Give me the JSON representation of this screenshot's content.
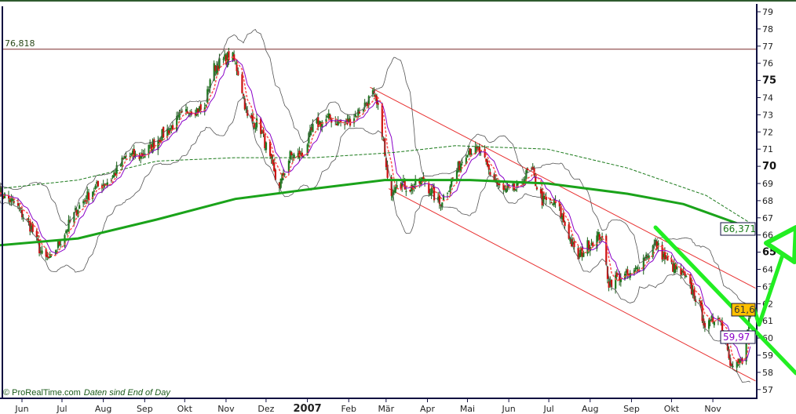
{
  "chart_data": {
    "type": "candlestick",
    "title": "",
    "ylim": [
      57,
      79
    ],
    "y_ticks": [
      57,
      58,
      59,
      60,
      61,
      62,
      63,
      64,
      65,
      66,
      67,
      68,
      69,
      70,
      71,
      72,
      73,
      74,
      75,
      76,
      77,
      78,
      79
    ],
    "y_bold_ticks": [
      65,
      70,
      75
    ],
    "x_ticks": [
      {
        "label": "Jun",
        "date": "2006-06-01"
      },
      {
        "label": "Jul",
        "date": "2006-07-01"
      },
      {
        "label": "Aug",
        "date": "2006-08-01"
      },
      {
        "label": "Sep",
        "date": "2006-09-01"
      },
      {
        "label": "Okt",
        "date": "2006-10-01"
      },
      {
        "label": "Nov",
        "date": "2006-11-01"
      },
      {
        "label": "Dez",
        "date": "2006-12-01"
      },
      {
        "label": "2007",
        "date": "2007-01-01",
        "bold": true
      },
      {
        "label": "Feb",
        "date": "2007-02-01"
      },
      {
        "label": "Mär",
        "date": "2007-03-01"
      },
      {
        "label": "Apr",
        "date": "2007-04-01"
      },
      {
        "label": "Mai",
        "date": "2007-05-01"
      },
      {
        "label": "Jun",
        "date": "2007-06-01"
      },
      {
        "label": "Jul",
        "date": "2007-07-01"
      },
      {
        "label": "Aug",
        "date": "2007-08-01"
      },
      {
        "label": "Sep",
        "date": "2007-09-01"
      },
      {
        "label": "Okt",
        "date": "2007-10-01"
      },
      {
        "label": "Nov",
        "date": "2007-11-01"
      }
    ],
    "close_path": [
      [
        "2006-05-15",
        68.5
      ],
      [
        "2006-05-27",
        67.8
      ],
      [
        "2006-06-08",
        66.4
      ],
      [
        "2006-06-17",
        64.6
      ],
      [
        "2006-06-23",
        64.6
      ],
      [
        "2006-07-02",
        66.0
      ],
      [
        "2006-07-13",
        67.6
      ],
      [
        "2006-07-25",
        68.7
      ],
      [
        "2006-08-06",
        69.2
      ],
      [
        "2006-08-18",
        70.6
      ],
      [
        "2006-08-29",
        70.6
      ],
      [
        "2006-09-10",
        71.5
      ],
      [
        "2006-09-22",
        72.4
      ],
      [
        "2006-10-04",
        73.3
      ],
      [
        "2006-10-16",
        73.3
      ],
      [
        "2006-10-21",
        75.6
      ],
      [
        "2006-10-27",
        76.0
      ],
      [
        "2006-11-05",
        76.5
      ],
      [
        "2006-11-11",
        75.3
      ],
      [
        "2006-11-17",
        72.8
      ],
      [
        "2006-11-26",
        72.4
      ],
      [
        "2006-12-05",
        70.1
      ],
      [
        "2006-12-10",
        68.7
      ],
      [
        "2006-12-19",
        70.6
      ],
      [
        "2006-12-28",
        70.6
      ],
      [
        "2007-01-06",
        72.4
      ],
      [
        "2007-01-18",
        72.8
      ],
      [
        "2007-01-29",
        72.4
      ],
      [
        "2007-02-10",
        73.3
      ],
      [
        "2007-02-19",
        74.2
      ],
      [
        "2007-02-25",
        72.8
      ],
      [
        "2007-03-03",
        68.3
      ],
      [
        "2007-03-09",
        69.2
      ],
      [
        "2007-03-18",
        68.7
      ],
      [
        "2007-03-29",
        69.2
      ],
      [
        "2007-04-10",
        67.8
      ],
      [
        "2007-04-22",
        69.6
      ],
      [
        "2007-05-01",
        71.0
      ],
      [
        "2007-05-10",
        70.8
      ],
      [
        "2007-05-18",
        69.6
      ],
      [
        "2007-05-27",
        68.5
      ],
      [
        "2007-06-08",
        68.7
      ],
      [
        "2007-06-17",
        69.9
      ],
      [
        "2007-06-26",
        68.0
      ],
      [
        "2007-07-07",
        67.8
      ],
      [
        "2007-07-16",
        66.0
      ],
      [
        "2007-07-22",
        64.6
      ],
      [
        "2007-07-31",
        65.5
      ],
      [
        "2007-08-09",
        66.0
      ],
      [
        "2007-08-15",
        63.2
      ],
      [
        "2007-08-23",
        63.6
      ],
      [
        "2007-09-01",
        63.6
      ],
      [
        "2007-09-10",
        64.6
      ],
      [
        "2007-09-19",
        65.5
      ],
      [
        "2007-09-28",
        64.4
      ],
      [
        "2007-10-10",
        63.6
      ],
      [
        "2007-10-21",
        62.1
      ],
      [
        "2007-10-27",
        60.5
      ],
      [
        "2007-11-05",
        61.5
      ],
      [
        "2007-11-14",
        58.7
      ],
      [
        "2007-11-23",
        58.5
      ],
      [
        "2007-11-29",
        61.6
      ]
    ],
    "ma_long": [
      [
        "2006-05-15",
        65.4
      ],
      [
        "2006-07-13",
        65.8
      ],
      [
        "2006-09-10",
        66.9
      ],
      [
        "2006-11-08",
        68.1
      ],
      [
        "2007-01-06",
        68.7
      ],
      [
        "2007-02-28",
        69.2
      ],
      [
        "2007-05-03",
        69.2
      ],
      [
        "2007-06-30",
        69.0
      ],
      [
        "2007-08-29",
        68.4
      ],
      [
        "2007-10-10",
        67.8
      ],
      [
        "2007-11-29",
        66.4
      ]
    ],
    "ma_mid": [
      [
        "2006-05-15",
        68.7
      ],
      [
        "2006-07-13",
        69.2
      ],
      [
        "2006-09-10",
        70.3
      ],
      [
        "2006-11-08",
        70.5
      ],
      [
        "2007-01-06",
        70.5
      ],
      [
        "2007-03-06",
        70.8
      ],
      [
        "2007-04-22",
        71.2
      ],
      [
        "2007-06-30",
        71.0
      ],
      [
        "2007-08-29",
        69.9
      ],
      [
        "2007-10-27",
        68.3
      ],
      [
        "2007-11-29",
        66.7
      ]
    ],
    "channel_upper": [
      [
        "2007-02-17",
        74.6
      ],
      [
        "2007-12-03",
        62.9
      ]
    ],
    "channel_lower": [
      [
        "2007-03-03",
        68.7
      ],
      [
        "2007-12-03",
        57.5
      ]
    ],
    "horizontal_line": 76.818,
    "horizontal_line_label": "76,818",
    "value_labels": {
      "ma_long": "66,371",
      "last": "61,6",
      "ma_short": "59,97"
    },
    "colors": {
      "up": "#1f7a1f",
      "down": "#cc1111",
      "ma_long": "#1aa31a",
      "ma_mid": "#1a7a1a",
      "bollinger": "#555555",
      "ma_short": "#8a00c8",
      "ma_fast": "#ff5050",
      "channel": "#e83030",
      "annotation": "#22ee22",
      "last_bg": "#ffc000"
    }
  },
  "footer": {
    "copyright": "© ProRealTime.com",
    "note": "Daten sind End of Day"
  }
}
